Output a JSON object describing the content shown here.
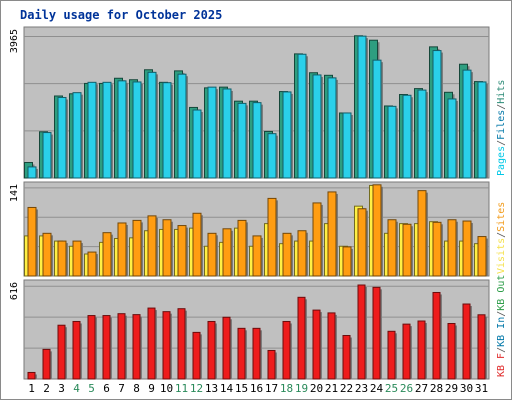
{
  "chart_data": {
    "type": "bar",
    "title": "Daily usage for October 2025",
    "categories": [
      "1",
      "2",
      "3",
      "4",
      "5",
      "6",
      "7",
      "8",
      "9",
      "10",
      "11",
      "12",
      "13",
      "14",
      "15",
      "16",
      "17",
      "18",
      "19",
      "20",
      "21",
      "22",
      "23",
      "24",
      "25",
      "26",
      "27",
      "28",
      "29",
      "30",
      "31"
    ],
    "weekend_days": [
      4,
      5,
      11,
      12,
      18,
      19,
      25,
      26
    ],
    "panels": [
      {
        "name": "pages-files-hits",
        "y_label_max": "3965",
        "ymax": 3965,
        "legend": [
          "Pages",
          "/",
          "Files",
          "/",
          "Hits"
        ],
        "legend_colors": [
          "#00c8e6",
          "#555555",
          "#0077a8",
          "#555555",
          "#2a8a76"
        ],
        "series": [
          {
            "name": "Hits",
            "color": "#2e9e80",
            "values": [
              420,
              1250,
              2220,
              2280,
              2560,
              2560,
              2700,
              2660,
              2930,
              2590,
              2900,
              1910,
              2440,
              2460,
              2080,
              2080,
              1260,
              2340,
              3360,
              2850,
              2780,
              1760,
              3850,
              3730,
              1950,
              2260,
              2420,
              3550,
              2320,
              3080,
              2610
            ]
          },
          {
            "name": "Files",
            "color": "#2ad0ea",
            "values": [
              300,
              1230,
              2180,
              2310,
              2590,
              2590,
              2630,
              2600,
              2860,
              2580,
              2810,
              1840,
              2460,
              2410,
              2020,
              2040,
              1200,
              2330,
              3350,
              2790,
              2710,
              1760,
              3840,
              3190,
              1940,
              2240,
              2380,
              3450,
              2140,
              2920,
              2600
            ]
          }
        ]
      },
      {
        "name": "visits-sites",
        "y_label_max": "141",
        "ymax": 141,
        "legend": [
          "Visits",
          "/",
          "Sites"
        ],
        "legend_colors": [
          "#f5e048",
          "#555555",
          "#f29a18"
        ],
        "series": [
          {
            "name": "Visits",
            "color": "#fff044",
            "values": [
              62,
              62,
              54,
              46,
              34,
              52,
              58,
              59,
              70,
              72,
              72,
              74,
              46,
              52,
              74,
              46,
              81,
              50,
              54,
              54,
              81,
              46,
              108,
              140,
              66,
              81,
              81,
              84,
              54,
              54,
              50
            ]
          },
          {
            "name": "Sites",
            "color": "#ff9d12",
            "values": [
              106,
              66,
              54,
              54,
              37,
              67,
              82,
              86,
              93,
              87,
              78,
              97,
              66,
              73,
              86,
              62,
              120,
              66,
              70,
              113,
              130,
              45,
              104,
              141,
              87,
              80,
              132,
              83,
              87,
              85,
              61
            ]
          }
        ]
      },
      {
        "name": "kb-traffic",
        "y_label_max": "616",
        "ymax": 616,
        "legend": [
          "KB",
          "F",
          "/",
          "KB",
          "In",
          "/",
          "KB",
          "Out"
        ],
        "legend_colors": [
          "#e02a2a",
          "#e02a2a",
          "#555555",
          "#0077a8",
          "#0077a8",
          "#555555",
          "#2f9e4a",
          "#2f9e4a"
        ],
        "series": [
          {
            "name": "KB F",
            "color": "#ee1c1c",
            "values": [
              42,
              190,
              345,
              369,
              407,
              407,
              419,
              413,
              455,
              432,
              451,
              299,
              369,
              396,
              325,
              325,
              183,
              369,
              524,
              442,
              424,
              279,
              603,
              588,
              306,
              352,
              372,
              555,
              356,
              481,
              412
            ]
          }
        ]
      }
    ]
  }
}
